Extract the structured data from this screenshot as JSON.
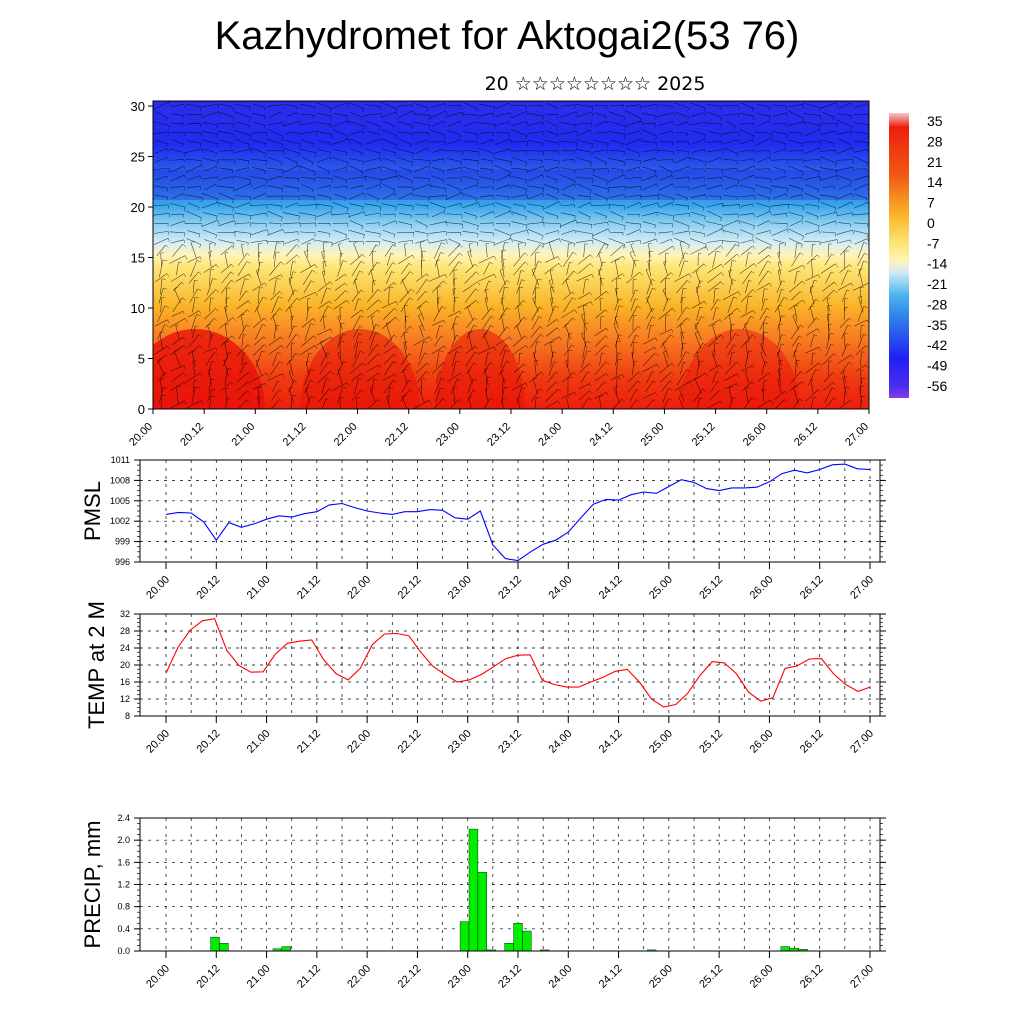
{
  "title": "Kazhydromet for Aktogai2(53 76)",
  "subtitle": "20 ☆☆☆☆☆☆☆☆ 2025",
  "chart_data": [
    {
      "type": "heatmap",
      "x_tick_labels": [
        "20.00",
        "20.12",
        "21.00",
        "21.12",
        "22.00",
        "22.12",
        "23.00",
        "23.12",
        "24.00",
        "24.12",
        "25.00",
        "25.12",
        "26.00",
        "26.12",
        "27.00"
      ],
      "y_ticks": [
        0,
        5,
        10,
        15,
        20,
        25,
        30
      ],
      "ylim": [
        0,
        30.5
      ],
      "colorbar_labels": [
        "35",
        "28",
        "21",
        "14",
        "7",
        "0",
        "-7",
        "-14",
        "-21",
        "-28",
        "-35",
        "-42",
        "-49",
        "-56"
      ],
      "colors": {
        "warm": "#e8170f",
        "neutral": "#fff2a0",
        "cold": "#2020ff",
        "pale_blue": "#cfe9f6"
      }
    },
    {
      "type": "line",
      "ylabel": "PMSL",
      "x_tick_labels": [
        "20.00",
        "20.12",
        "21.00",
        "21.12",
        "22.00",
        "22.12",
        "23.00",
        "23.12",
        "24.00",
        "24.12",
        "25.00",
        "25.12",
        "26.00",
        "26.12",
        "27.00"
      ],
      "y_ticks": [
        996,
        999,
        1002,
        1005,
        1008,
        1011
      ],
      "ylim": [
        996,
        1011
      ],
      "line_color": "#0000ff",
      "values": [
        1003.0,
        1003.3,
        1003.2,
        1001.9,
        999.2,
        1001.8,
        1001.1,
        1001.6,
        1002.3,
        1002.8,
        1002.6,
        1003.1,
        1003.4,
        1004.4,
        1004.6,
        1004.0,
        1003.5,
        1003.2,
        1003.0,
        1003.4,
        1003.4,
        1003.7,
        1003.6,
        1002.5,
        1002.3,
        1003.5,
        998.5,
        996.5,
        996.2,
        997.5,
        998.6,
        999.2,
        1000.4,
        1002.5,
        1004.5,
        1005.2,
        1005.1,
        1005.9,
        1006.3,
        1006.1,
        1007.1,
        1008.1,
        1007.7,
        1006.8,
        1006.5,
        1006.9,
        1006.9,
        1007.0,
        1007.8,
        1009.0,
        1009.5,
        1009.1,
        1009.6,
        1010.3,
        1010.4,
        1009.7,
        1009.6
      ]
    },
    {
      "type": "line",
      "ylabel": "TEMP at 2 M",
      "x_tick_labels": [
        "20.00",
        "20.12",
        "21.00",
        "21.12",
        "22.00",
        "22.12",
        "23.00",
        "23.12",
        "24.00",
        "24.12",
        "25.00",
        "25.12",
        "26.00",
        "26.12",
        "27.00"
      ],
      "y_ticks": [
        8,
        12,
        16,
        20,
        24,
        28,
        32
      ],
      "ylim": [
        8,
        32
      ],
      "line_color": "#ff0000",
      "values": [
        18.1,
        24.2,
        28.2,
        30.4,
        30.9,
        23.5,
        19.9,
        18.3,
        18.4,
        22.5,
        25.1,
        25.6,
        25.9,
        21.2,
        18.0,
        16.5,
        19.2,
        24.8,
        27.3,
        27.4,
        26.9,
        23.0,
        19.7,
        17.7,
        16.0,
        16.5,
        17.8,
        19.6,
        21.5,
        22.3,
        22.4,
        16.4,
        15.4,
        14.8,
        14.8,
        16.0,
        17.1,
        18.5,
        19.0,
        16.0,
        12.0,
        10.1,
        10.7,
        13.4,
        17.6,
        20.8,
        20.5,
        17.9,
        13.6,
        11.5,
        12.3,
        19.2,
        19.8,
        21.4,
        21.5,
        17.9,
        15.4,
        13.8,
        14.8
      ]
    },
    {
      "type": "bar",
      "ylabel": "PRECIP, mm",
      "x_tick_labels": [
        "20.00",
        "20.12",
        "21.00",
        "21.12",
        "22.00",
        "22.12",
        "23.00",
        "23.12",
        "24.00",
        "24.12",
        "25.00",
        "25.12",
        "26.00",
        "26.12",
        "27.00"
      ],
      "y_ticks": [
        "0.0",
        "0.4",
        "0.8",
        "1.2",
        "1.6",
        "2.0",
        "2.4"
      ],
      "ylim": [
        0,
        2.4
      ],
      "bar_color": "#00ee00",
      "values": [
        0,
        0,
        0,
        0,
        0,
        0.25,
        0.14,
        0,
        0,
        0,
        0,
        0,
        0.04,
        0.08,
        0,
        0,
        0,
        0,
        0,
        0,
        0,
        0,
        0,
        0,
        0,
        0,
        0,
        0,
        0,
        0,
        0,
        0,
        0,
        0.53,
        2.2,
        1.42,
        0.02,
        0,
        0.14,
        0.5,
        0.36,
        0,
        0.02,
        0,
        0,
        0,
        0,
        0,
        0,
        0,
        0,
        0,
        0,
        0,
        0.02,
        0,
        0,
        0,
        0,
        0,
        0,
        0,
        0,
        0,
        0,
        0,
        0,
        0,
        0,
        0.08,
        0.05,
        0.03,
        0,
        0,
        0,
        0,
        0,
        0,
        0
      ]
    }
  ]
}
